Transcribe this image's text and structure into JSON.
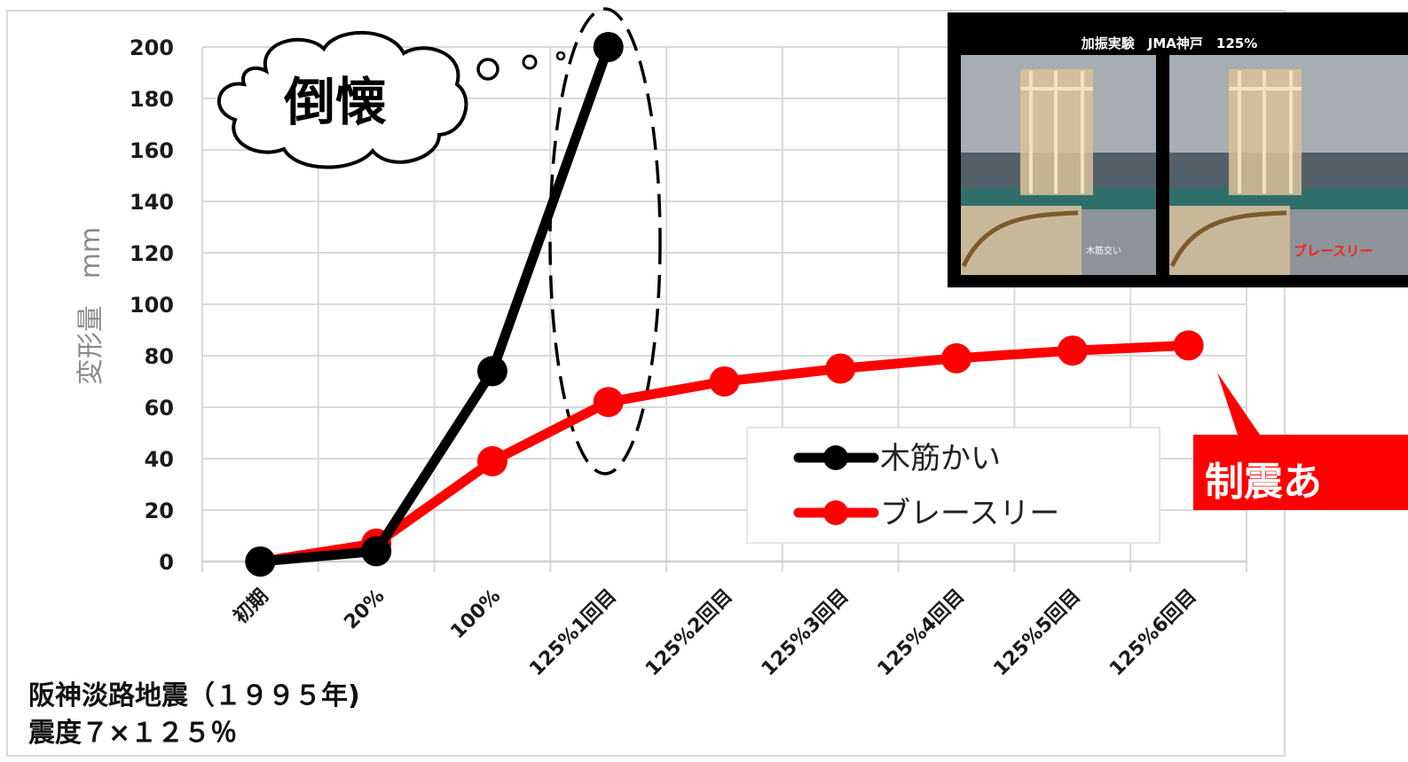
{
  "chart_data": {
    "type": "line",
    "categories": [
      "初期",
      "20%",
      "100%",
      "125%1回目",
      "125%2回目",
      "125%3回目",
      "125%4回目",
      "125%5回目",
      "125%6回目"
    ],
    "series": [
      {
        "name": "木筋かい",
        "color": "#000000",
        "values": [
          0,
          4,
          74,
          200,
          null,
          null,
          null,
          null,
          null
        ]
      },
      {
        "name": "ブレースリー",
        "color": "#ff0000",
        "values": [
          0,
          7,
          39,
          62,
          70,
          75,
          79,
          82,
          84
        ]
      }
    ],
    "ylabel": "変形量　mm",
    "ylim": [
      0,
      200
    ],
    "yticks": [
      "0",
      "20",
      "40",
      "60",
      "80",
      "100",
      "120",
      "140",
      "160",
      "180",
      "200"
    ],
    "grid": true,
    "legend_position": "center-right"
  },
  "annotations": {
    "collapse_bubble": "倒懐",
    "callout": "制震あ",
    "note_line1": "阪神淡路地震（１９９５年)",
    "note_line2": "震度７×１２５％"
  },
  "photo": {
    "title": "加振実験　JMA神戸　125%",
    "left_label": "木筋交い",
    "right_label": "ブレースリー"
  }
}
